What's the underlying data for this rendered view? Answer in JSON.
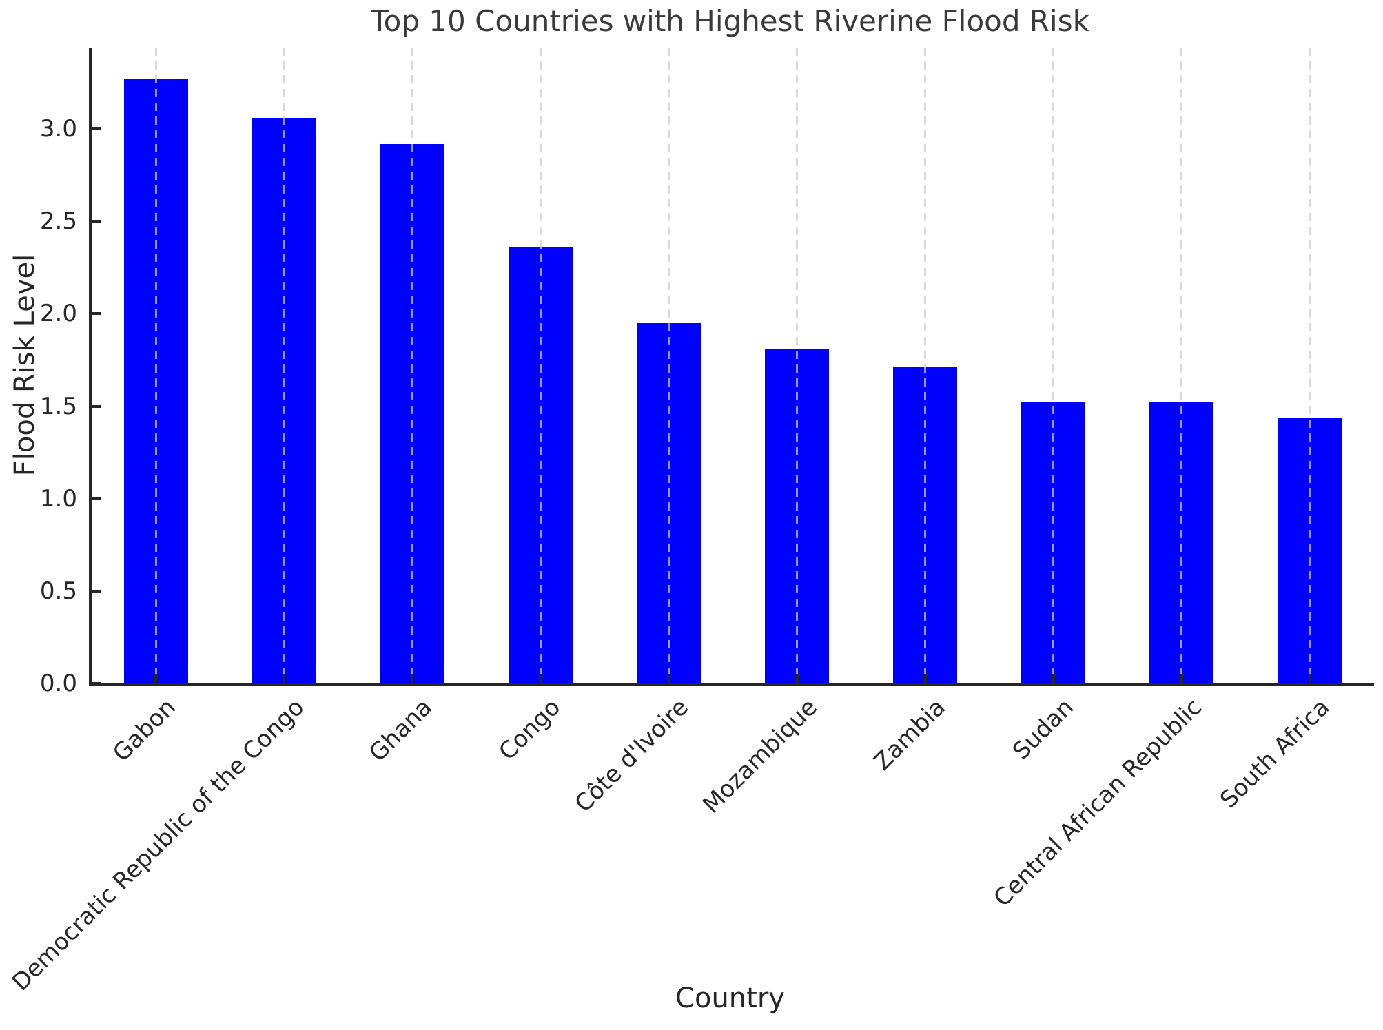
{
  "chart_data": {
    "type": "bar",
    "title": "Top 10 Countries with Highest Riverine Flood Risk",
    "xlabel": "Country",
    "ylabel": "Flood Risk Level",
    "categories": [
      "Gabon",
      "Democratic Republic of the Congo",
      "Ghana",
      "Congo",
      "Côte d'Ivoire",
      "Mozambique",
      "Zambia",
      "Sudan",
      "Central African Republic",
      "South Africa"
    ],
    "values": [
      3.27,
      3.06,
      2.92,
      2.36,
      1.95,
      1.81,
      1.71,
      1.52,
      1.52,
      1.44
    ],
    "ylim": [
      0,
      3.44
    ],
    "yticks": [
      "0.0",
      "0.5",
      "1.0",
      "1.5",
      "2.0",
      "2.5",
      "3.0"
    ],
    "bar_color": "#0000ff",
    "grid": {
      "axis": "x",
      "style": "dashed",
      "color": "#cccccc",
      "opacity": 0.75
    },
    "legend": "none",
    "bar_width_fraction": 0.5,
    "tick_direction": "in"
  }
}
